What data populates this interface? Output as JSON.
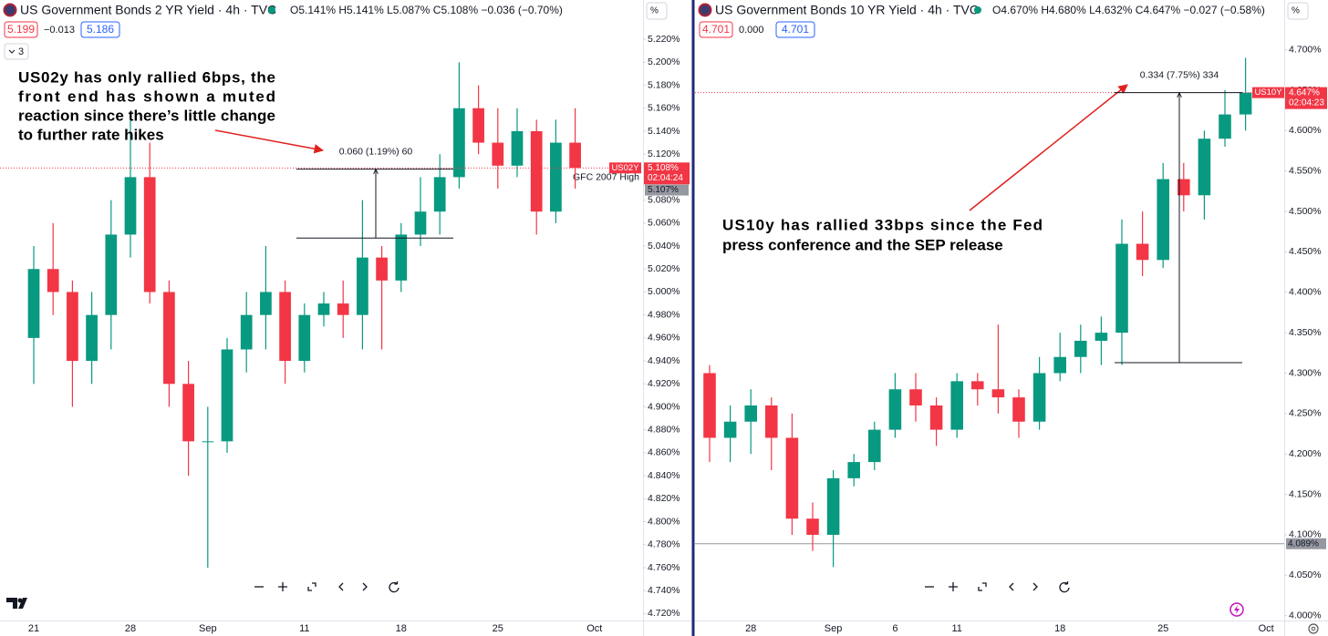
{
  "chart_data": [
    {
      "type": "candlestick",
      "title": "US Government Bonds 2 YR Yield · 4h · TVC",
      "legend": "O5.141% H5.141% L5.087% C5.108% −0.036 (−0.70%)",
      "quote": [
        "5.199",
        "−0.013",
        "5.186"
      ],
      "indicator_count": "3",
      "axis_unit": "%",
      "categories": [
        "21",
        null,
        null,
        null,
        null,
        "28",
        null,
        null,
        null,
        "Sep",
        null,
        null,
        null,
        null,
        "11",
        null,
        null,
        null,
        null,
        "18",
        null,
        null,
        null,
        null,
        "25",
        null,
        null,
        null,
        null,
        "Oct"
      ],
      "open": [
        4.96,
        5.02,
        5.0,
        4.94,
        4.98,
        5.05,
        5.1,
        5.0,
        4.92,
        4.87,
        4.87,
        4.95,
        4.98,
        5.0,
        4.94,
        4.98,
        4.99,
        4.98,
        5.03,
        5.01,
        5.05,
        5.07,
        5.1,
        5.16,
        5.13,
        5.11,
        5.14,
        5.07,
        5.13,
        null
      ],
      "high": [
        5.04,
        5.06,
        5.01,
        5.0,
        5.08,
        5.15,
        5.13,
        5.01,
        4.94,
        4.9,
        4.96,
        5.0,
        5.04,
        5.01,
        4.99,
        5.0,
        5.01,
        5.08,
        5.04,
        5.06,
        5.1,
        5.12,
        5.2,
        5.18,
        5.16,
        5.16,
        5.15,
        5.15,
        5.16,
        null
      ],
      "low": [
        4.92,
        4.98,
        4.9,
        4.92,
        4.95,
        5.03,
        4.99,
        4.9,
        4.84,
        4.76,
        4.86,
        4.93,
        4.95,
        4.92,
        4.93,
        4.97,
        4.96,
        4.95,
        4.95,
        5.0,
        5.04,
        5.05,
        5.09,
        5.12,
        5.09,
        5.1,
        5.05,
        5.06,
        5.09,
        null
      ],
      "close": [
        5.02,
        5.0,
        4.94,
        4.98,
        5.05,
        5.1,
        5.0,
        4.92,
        4.87,
        4.87,
        4.95,
        4.98,
        5.0,
        4.94,
        4.98,
        4.99,
        4.98,
        5.03,
        5.01,
        5.05,
        5.07,
        5.1,
        5.16,
        5.13,
        5.11,
        5.14,
        5.07,
        5.13,
        5.108,
        null
      ],
      "up_color": "#089981",
      "down_color": "#f23645",
      "ylim": [
        4.714,
        5.232
      ],
      "yticks": [
        {
          "value": 4.72,
          "label": "4.720%"
        },
        {
          "value": 4.74,
          "label": "4.740%"
        },
        {
          "value": 4.76,
          "label": "4.760%"
        },
        {
          "value": 4.78,
          "label": "4.780%"
        },
        {
          "value": 4.8,
          "label": "4.800%"
        },
        {
          "value": 4.82,
          "label": "4.820%"
        },
        {
          "value": 4.84,
          "label": "4.840%"
        },
        {
          "value": 4.86,
          "label": "4.860%"
        },
        {
          "value": 4.88,
          "label": "4.880%"
        },
        {
          "value": 4.9,
          "label": "4.900%"
        },
        {
          "value": 4.92,
          "label": "4.920%"
        },
        {
          "value": 4.94,
          "label": "4.940%"
        },
        {
          "value": 4.96,
          "label": "4.960%"
        },
        {
          "value": 4.98,
          "label": "4.980%"
        },
        {
          "value": 5.0,
          "label": "5.000%"
        },
        {
          "value": 5.02,
          "label": "5.020%"
        },
        {
          "value": 5.04,
          "label": "5.040%"
        },
        {
          "value": 5.06,
          "label": "5.060%"
        },
        {
          "value": 5.08,
          "label": "5.080%"
        },
        {
          "value": 5.1,
          "label": "5.100%"
        },
        {
          "value": 5.12,
          "label": "5.120%"
        },
        {
          "value": 5.14,
          "label": "5.140%"
        },
        {
          "value": 5.16,
          "label": "5.160%"
        },
        {
          "value": 5.18,
          "label": "5.180%"
        },
        {
          "value": 5.2,
          "label": "5.200%"
        },
        {
          "value": 5.22,
          "label": "5.220%"
        }
      ],
      "symbol": "US02Y",
      "last_price": {
        "value": 5.108,
        "label": "5.108%"
      },
      "countdown": "02:04:24",
      "reference": {
        "value": 5.107,
        "label": "5.107%",
        "note": "GFC 2007 High"
      },
      "measure": {
        "from": 5.047,
        "to": 5.107,
        "label": "0.060 (1.19%) 60"
      },
      "annotation": [
        "US02y has only rallied 6bps, the",
        "front end has shown a muted",
        "reaction since there’s little change",
        "to further rate hikes"
      ]
    },
    {
      "type": "candlestick",
      "title": "US Government Bonds 10 YR Yield · 4h · TVC",
      "legend": "O4.670% H4.680% L4.632% C4.647% −0.027 (−0.58%)",
      "quote": [
        "4.701",
        "0.000",
        "4.701"
      ],
      "axis_unit": "%",
      "categories": [
        null,
        null,
        "28",
        null,
        null,
        null,
        "Sep",
        null,
        null,
        "6",
        null,
        null,
        "11",
        null,
        null,
        null,
        null,
        "18",
        null,
        null,
        null,
        null,
        "25",
        null,
        null,
        null,
        null,
        "Oct"
      ],
      "open": [
        4.3,
        4.22,
        4.24,
        4.26,
        4.22,
        4.12,
        4.1,
        4.17,
        4.19,
        4.23,
        4.28,
        4.26,
        4.23,
        4.29,
        4.28,
        4.27,
        4.24,
        4.3,
        4.32,
        4.34,
        4.35,
        4.46,
        4.44,
        4.54,
        4.52,
        4.59,
        4.62,
        null
      ],
      "high": [
        4.31,
        4.26,
        4.28,
        4.27,
        4.25,
        4.14,
        4.18,
        4.2,
        4.24,
        4.3,
        4.3,
        4.27,
        4.3,
        4.3,
        4.36,
        4.28,
        4.32,
        4.35,
        4.36,
        4.37,
        4.49,
        4.5,
        4.56,
        4.56,
        4.6,
        4.65,
        4.69,
        null
      ],
      "low": [
        4.19,
        4.19,
        4.2,
        4.18,
        4.1,
        4.08,
        4.06,
        4.16,
        4.18,
        4.22,
        4.24,
        4.21,
        4.22,
        4.26,
        4.25,
        4.22,
        4.23,
        4.29,
        4.3,
        4.31,
        4.31,
        4.42,
        4.43,
        4.5,
        4.49,
        4.58,
        4.6,
        null
      ],
      "close": [
        4.22,
        4.24,
        4.26,
        4.22,
        4.12,
        4.1,
        4.17,
        4.19,
        4.23,
        4.28,
        4.26,
        4.23,
        4.29,
        4.28,
        4.27,
        4.24,
        4.3,
        4.32,
        4.34,
        4.35,
        4.46,
        4.44,
        4.54,
        4.52,
        4.59,
        4.62,
        4.647,
        null
      ],
      "up_color": "#089981",
      "down_color": "#f23645",
      "ylim": [
        3.994,
        4.73
      ],
      "yticks": [
        {
          "value": 4.0,
          "label": "4.000%"
        },
        {
          "value": 4.05,
          "label": "4.050%"
        },
        {
          "value": 4.1,
          "label": "4.100%"
        },
        {
          "value": 4.15,
          "label": "4.150%"
        },
        {
          "value": 4.2,
          "label": "4.200%"
        },
        {
          "value": 4.25,
          "label": "4.250%"
        },
        {
          "value": 4.3,
          "label": "4.300%"
        },
        {
          "value": 4.35,
          "label": "4.350%"
        },
        {
          "value": 4.4,
          "label": "4.400%"
        },
        {
          "value": 4.45,
          "label": "4.450%"
        },
        {
          "value": 4.5,
          "label": "4.500%"
        },
        {
          "value": 4.55,
          "label": "4.550%"
        },
        {
          "value": 4.6,
          "label": "4.600%"
        },
        {
          "value": 4.65,
          "label": "4.650%"
        },
        {
          "value": 4.7,
          "label": "4.700%"
        }
      ],
      "symbol": "US10Y",
      "last_price": {
        "value": 4.647,
        "label": "4.647%"
      },
      "countdown": "02:04:23",
      "reference": {
        "value": 4.089,
        "label": "4.089%"
      },
      "measure": {
        "from": 4.313,
        "to": 4.647,
        "label": "0.334 (7.75%) 334"
      },
      "annotation": [
        "US10y has rallied 33bps since the Fed",
        "press conference and the SEP release"
      ]
    }
  ]
}
